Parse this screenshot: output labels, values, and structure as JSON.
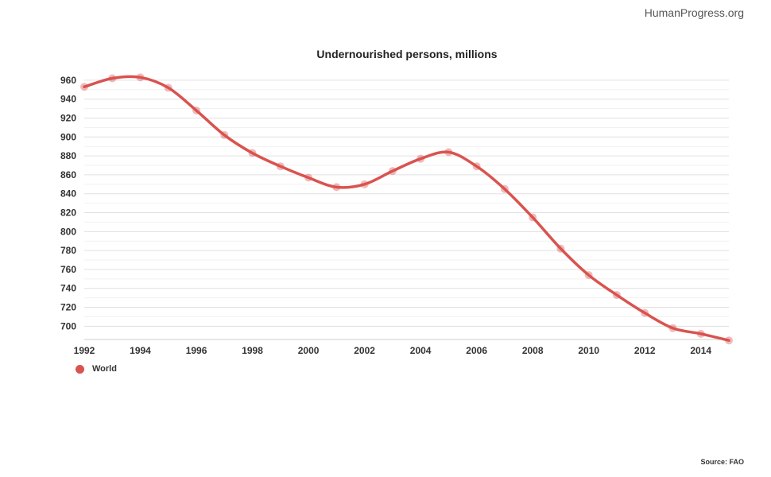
{
  "brand": "HumanProgress.org",
  "source": "Source: FAO",
  "chart_data": {
    "type": "line",
    "title": "Undernourished persons, millions",
    "xlabel": "",
    "ylabel": "",
    "x": [
      1992,
      1993,
      1994,
      1995,
      1996,
      1997,
      1998,
      1999,
      2000,
      2001,
      2002,
      2003,
      2004,
      2005,
      2006,
      2007,
      2008,
      2009,
      2010,
      2011,
      2012,
      2013,
      2014,
      2015
    ],
    "x_ticks": [
      "1992",
      "1994",
      "1996",
      "1998",
      "2000",
      "2002",
      "2004",
      "2006",
      "2008",
      "2010",
      "2012",
      "2014"
    ],
    "y_ticks": [
      "960",
      "940",
      "920",
      "900",
      "880",
      "860",
      "840",
      "820",
      "800",
      "780",
      "760",
      "740",
      "720",
      "700"
    ],
    "ylim": [
      686,
      970
    ],
    "xlim": [
      1992,
      2015
    ],
    "grid": true,
    "legend_position": "bottom-left",
    "series": [
      {
        "name": "World",
        "color": "#d9534f",
        "values": [
          953,
          962,
          963,
          952,
          928,
          902,
          883,
          869,
          857,
          847,
          850,
          864,
          877,
          884,
          869,
          845,
          815,
          782,
          754,
          733,
          714,
          698,
          692,
          685
        ]
      }
    ]
  }
}
